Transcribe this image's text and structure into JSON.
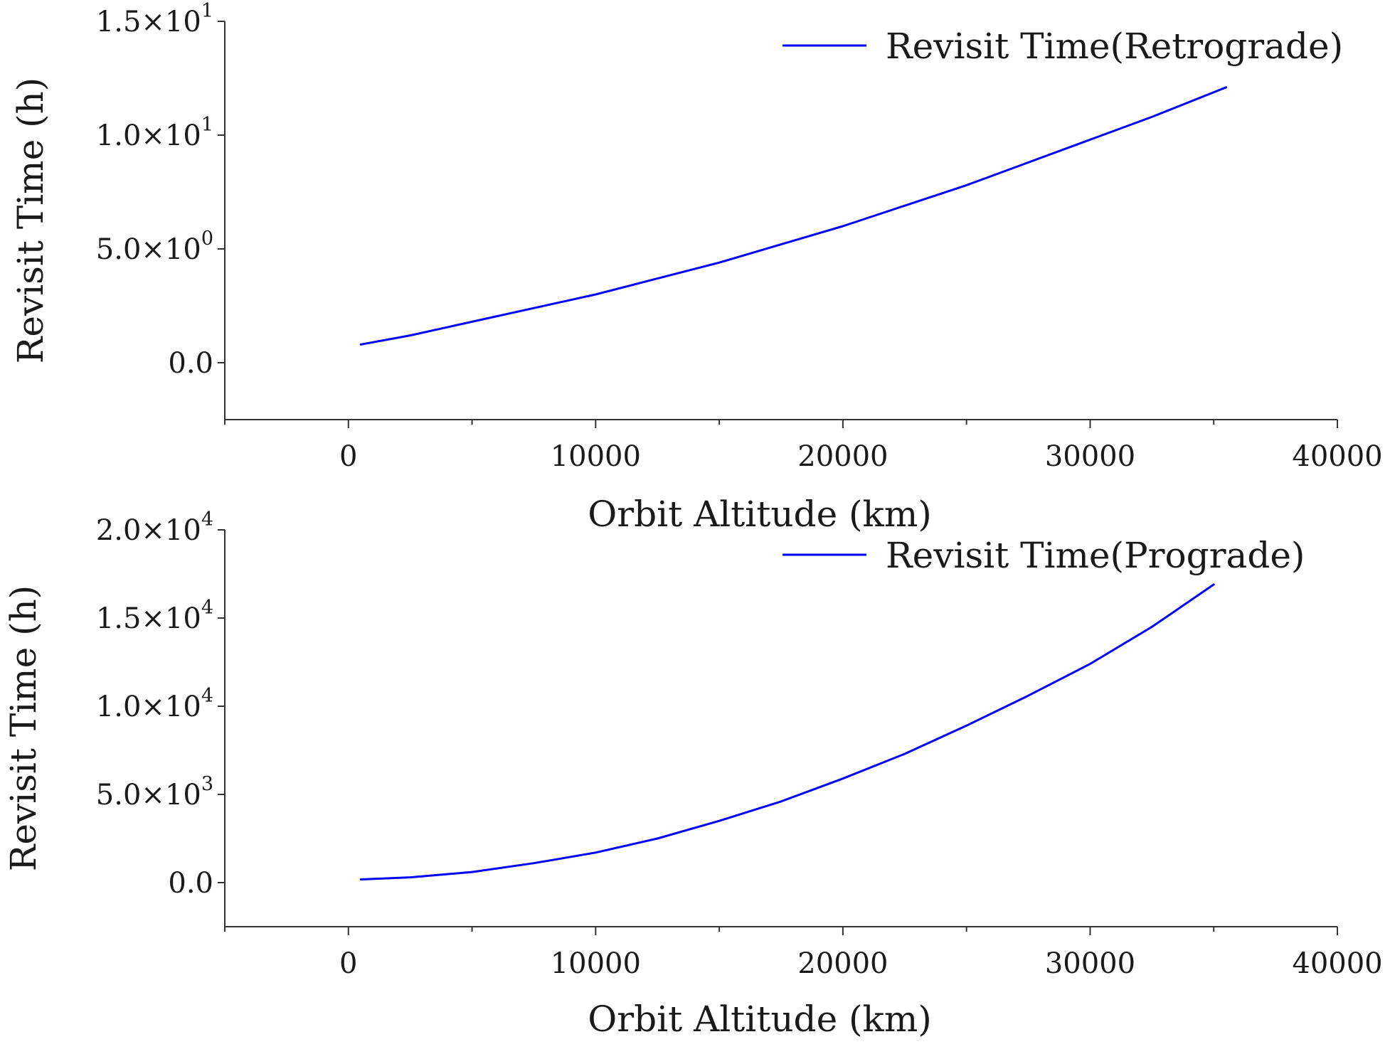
{
  "chart_data": [
    {
      "type": "line",
      "xlabel": "Orbit Altitude (km)",
      "ylabel": "Revisit Time (h)",
      "xlim": [
        -5000,
        40000
      ],
      "ylim": [
        -2.5,
        15
      ],
      "x_ticks": [
        0,
        10000,
        20000,
        30000,
        40000
      ],
      "x_tick_labels": [
        "0",
        "10000",
        "20000",
        "30000",
        "40000"
      ],
      "y_ticks": [
        0,
        5,
        10,
        15
      ],
      "y_tick_labels": [
        {
          "mant": "0.0",
          "exp": ""
        },
        {
          "mant": "5.0×10",
          "exp": "0"
        },
        {
          "mant": "1.0×10",
          "exp": "1"
        },
        {
          "mant": "1.5×10",
          "exp": "1"
        }
      ],
      "legend_position": "top-right",
      "grid": false,
      "series": [
        {
          "name": "Revisit Time(Retrograde)",
          "color": "#0000ff",
          "x": [
            500,
            2500,
            5000,
            7500,
            10000,
            12500,
            15000,
            17500,
            20000,
            22500,
            25000,
            27500,
            30000,
            32500,
            35500
          ],
          "y": [
            0.8,
            1.2,
            1.8,
            2.4,
            3.0,
            3.7,
            4.4,
            5.2,
            6.0,
            6.9,
            7.8,
            8.8,
            9.8,
            10.8,
            12.1
          ]
        }
      ]
    },
    {
      "type": "line",
      "xlabel": "Orbit Altitude (km)",
      "ylabel": "Revisit Time (h)",
      "xlim": [
        -5000,
        40000
      ],
      "ylim": [
        -2500,
        20000
      ],
      "x_ticks": [
        0,
        10000,
        20000,
        30000,
        40000
      ],
      "x_tick_labels": [
        "0",
        "10000",
        "20000",
        "30000",
        "40000"
      ],
      "y_ticks": [
        0,
        5000,
        10000,
        15000,
        20000
      ],
      "y_tick_labels": [
        {
          "mant": "0.0",
          "exp": ""
        },
        {
          "mant": "5.0×10",
          "exp": "3"
        },
        {
          "mant": "1.0×10",
          "exp": "4"
        },
        {
          "mant": "1.5×10",
          "exp": "4"
        },
        {
          "mant": "2.0×10",
          "exp": "4"
        }
      ],
      "legend_position": "top-right",
      "grid": false,
      "series": [
        {
          "name": "Revisit Time(Prograde)",
          "color": "#0000ff",
          "x": [
            500,
            2500,
            5000,
            7500,
            10000,
            12500,
            15000,
            17500,
            20000,
            22500,
            25000,
            27500,
            30000,
            32500,
            35000
          ],
          "y": [
            180,
            300,
            600,
            1100,
            1700,
            2500,
            3500,
            4600,
            5900,
            7300,
            8900,
            10600,
            12400,
            14500,
            16900
          ]
        }
      ]
    }
  ]
}
